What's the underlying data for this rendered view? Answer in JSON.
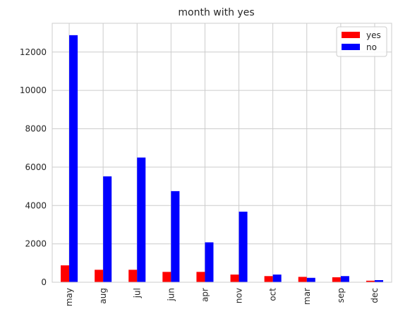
{
  "chart_data": {
    "type": "bar",
    "title": "month with yes",
    "xlabel": "",
    "ylabel": "",
    "categories": [
      "may",
      "aug",
      "jul",
      "jun",
      "apr",
      "nov",
      "oct",
      "mar",
      "sep",
      "dec"
    ],
    "series": [
      {
        "name": "yes",
        "color": "#ff0000",
        "values": [
          880,
          650,
          650,
          540,
          540,
          400,
          320,
          280,
          260,
          80
        ]
      },
      {
        "name": "no",
        "color": "#0000ff",
        "values": [
          12880,
          5520,
          6500,
          4750,
          2080,
          3680,
          400,
          230,
          320,
          110
        ]
      }
    ],
    "ylim": [
      0,
      13500
    ],
    "yticks": [
      0,
      2000,
      4000,
      6000,
      8000,
      10000,
      12000
    ],
    "grid": true,
    "legend_position": "top-right"
  }
}
